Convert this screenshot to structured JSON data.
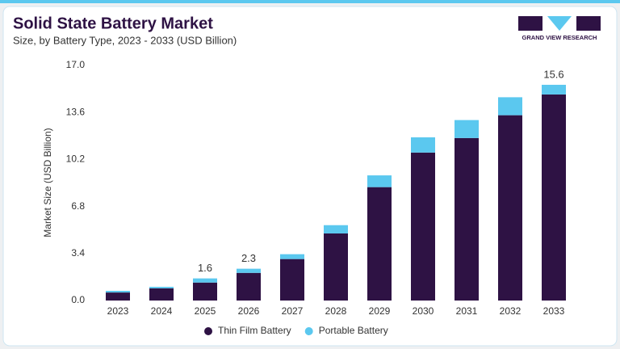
{
  "chart_data": {
    "type": "stacked_bar",
    "title": "Solid State Battery Market",
    "subtitle": "Size, by Battery Type, 2023 - 2033 (USD Billion)",
    "brand": "GRAND VIEW RESEARCH",
    "ylabel": "Market Size (USD Billion)",
    "categories": [
      "2023",
      "2024",
      "2025",
      "2026",
      "2027",
      "2028",
      "2029",
      "2030",
      "2031",
      "2032",
      "2033"
    ],
    "series": [
      {
        "name": "Thin Film Battery",
        "color": "#2e1244",
        "values": [
          0.58,
          0.88,
          1.3,
          2.0,
          3.0,
          4.85,
          8.2,
          10.7,
          11.75,
          13.4,
          14.9
        ]
      },
      {
        "name": "Portable Battery",
        "color": "#5bc8ef",
        "values": [
          0.12,
          0.11,
          0.3,
          0.3,
          0.35,
          0.6,
          0.85,
          1.1,
          1.3,
          1.3,
          0.7
        ]
      }
    ],
    "totals": [
      null,
      null,
      1.6,
      2.3,
      null,
      null,
      null,
      null,
      null,
      null,
      15.6
    ],
    "ylim": [
      0,
      17
    ],
    "yticks": [
      {
        "value": 0,
        "label": "0.0"
      },
      3.4,
      6.8,
      10.2,
      13.6,
      {
        "value": 17,
        "label": "17.0"
      }
    ],
    "grid": false
  }
}
